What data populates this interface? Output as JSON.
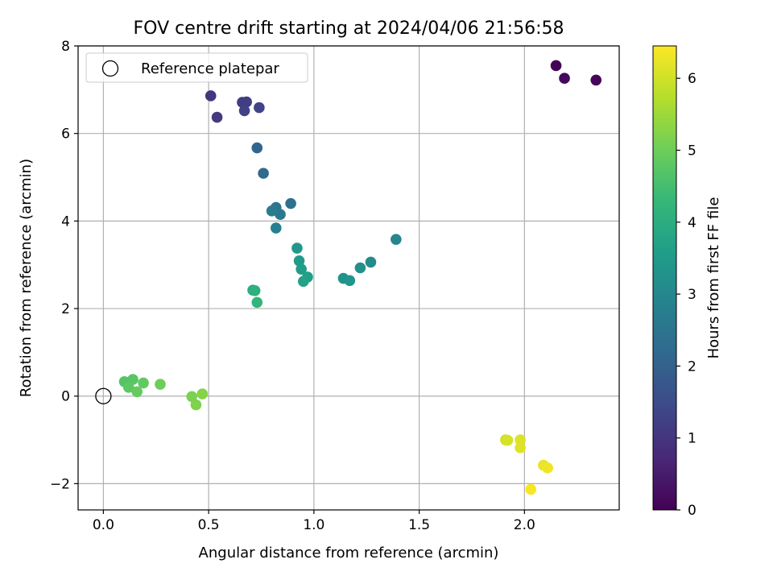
{
  "chart_data": {
    "type": "scatter",
    "title": "FOV centre drift starting at 2024/04/06 21:56:58",
    "xlabel": "Angular distance from reference (arcmin)",
    "ylabel": "Rotation from reference (arcmin)",
    "xlim": [
      -0.12,
      2.45
    ],
    "ylim": [
      -2.6,
      8.0
    ],
    "x_ticks": [
      0.0,
      0.5,
      1.0,
      1.5,
      2.0
    ],
    "x_tick_labels": [
      "0.0",
      "0.5",
      "1.0",
      "1.5",
      "2.0"
    ],
    "y_ticks": [
      -2,
      0,
      2,
      4,
      6,
      8
    ],
    "y_tick_labels": [
      "−2",
      "0",
      "2",
      "4",
      "6",
      "8"
    ],
    "grid": true,
    "legend": {
      "position": "top-left",
      "entries": [
        "Reference platepar"
      ]
    },
    "reference_point": {
      "label": "Reference platepar",
      "x": 0.0,
      "y": 0.0
    },
    "colorbar": {
      "label": "Hours from first FF file",
      "range": [
        0,
        6.45
      ],
      "ticks": [
        0,
        1,
        2,
        3,
        4,
        5,
        6
      ],
      "tick_labels": [
        "0",
        "1",
        "2",
        "3",
        "4",
        "5",
        "6"
      ],
      "colormap": [
        "#440154",
        "#482878",
        "#3e4989",
        "#31688e",
        "#26828e",
        "#1f9e89",
        "#35b779",
        "#6ece58",
        "#b5de2b",
        "#fde725"
      ]
    },
    "points": [
      {
        "x": 2.15,
        "y": 7.55,
        "c": 0.05
      },
      {
        "x": 2.34,
        "y": 7.22,
        "c": 0.1
      },
      {
        "x": 2.19,
        "y": 7.26,
        "c": 0.15
      },
      {
        "x": 0.51,
        "y": 6.86,
        "c": 1.0
      },
      {
        "x": 0.54,
        "y": 6.37,
        "c": 1.1
      },
      {
        "x": 0.66,
        "y": 6.71,
        "c": 1.15
      },
      {
        "x": 0.68,
        "y": 6.72,
        "c": 1.2
      },
      {
        "x": 0.67,
        "y": 6.52,
        "c": 1.25
      },
      {
        "x": 0.74,
        "y": 6.59,
        "c": 1.3
      },
      {
        "x": 0.73,
        "y": 5.67,
        "c": 2.1
      },
      {
        "x": 0.76,
        "y": 5.09,
        "c": 2.2
      },
      {
        "x": 0.89,
        "y": 4.4,
        "c": 2.4
      },
      {
        "x": 0.82,
        "y": 4.31,
        "c": 2.5
      },
      {
        "x": 0.84,
        "y": 4.15,
        "c": 2.6
      },
      {
        "x": 0.8,
        "y": 4.23,
        "c": 2.7
      },
      {
        "x": 0.82,
        "y": 3.84,
        "c": 2.8
      },
      {
        "x": 1.39,
        "y": 3.58,
        "c": 3.0
      },
      {
        "x": 1.27,
        "y": 3.06,
        "c": 3.1
      },
      {
        "x": 1.22,
        "y": 2.93,
        "c": 3.2
      },
      {
        "x": 1.14,
        "y": 2.69,
        "c": 3.3
      },
      {
        "x": 1.17,
        "y": 2.64,
        "c": 3.35
      },
      {
        "x": 0.92,
        "y": 3.38,
        "c": 3.4
      },
      {
        "x": 0.93,
        "y": 3.09,
        "c": 3.5
      },
      {
        "x": 0.94,
        "y": 2.9,
        "c": 3.55
      },
      {
        "x": 0.97,
        "y": 2.72,
        "c": 3.6
      },
      {
        "x": 0.95,
        "y": 2.62,
        "c": 3.7
      },
      {
        "x": 0.71,
        "y": 2.42,
        "c": 4.0
      },
      {
        "x": 0.72,
        "y": 2.41,
        "c": 4.1
      },
      {
        "x": 0.73,
        "y": 2.14,
        "c": 4.2
      },
      {
        "x": 0.1,
        "y": 0.33,
        "c": 4.7
      },
      {
        "x": 0.14,
        "y": 0.38,
        "c": 4.75
      },
      {
        "x": 0.12,
        "y": 0.2,
        "c": 4.8
      },
      {
        "x": 0.19,
        "y": 0.3,
        "c": 4.85
      },
      {
        "x": 0.16,
        "y": 0.1,
        "c": 4.9
      },
      {
        "x": 0.27,
        "y": 0.27,
        "c": 5.0
      },
      {
        "x": 0.42,
        "y": -0.01,
        "c": 5.15
      },
      {
        "x": 0.44,
        "y": -0.2,
        "c": 5.2
      },
      {
        "x": 0.47,
        "y": 0.05,
        "c": 5.25
      },
      {
        "x": 1.91,
        "y": -1.0,
        "c": 6.0
      },
      {
        "x": 1.92,
        "y": -1.01,
        "c": 6.05
      },
      {
        "x": 1.98,
        "y": -1.0,
        "c": 6.1
      },
      {
        "x": 1.98,
        "y": -1.18,
        "c": 6.15
      },
      {
        "x": 2.09,
        "y": -1.58,
        "c": 6.25
      },
      {
        "x": 2.11,
        "y": -1.64,
        "c": 6.3
      },
      {
        "x": 2.03,
        "y": -2.13,
        "c": 6.4
      }
    ]
  }
}
